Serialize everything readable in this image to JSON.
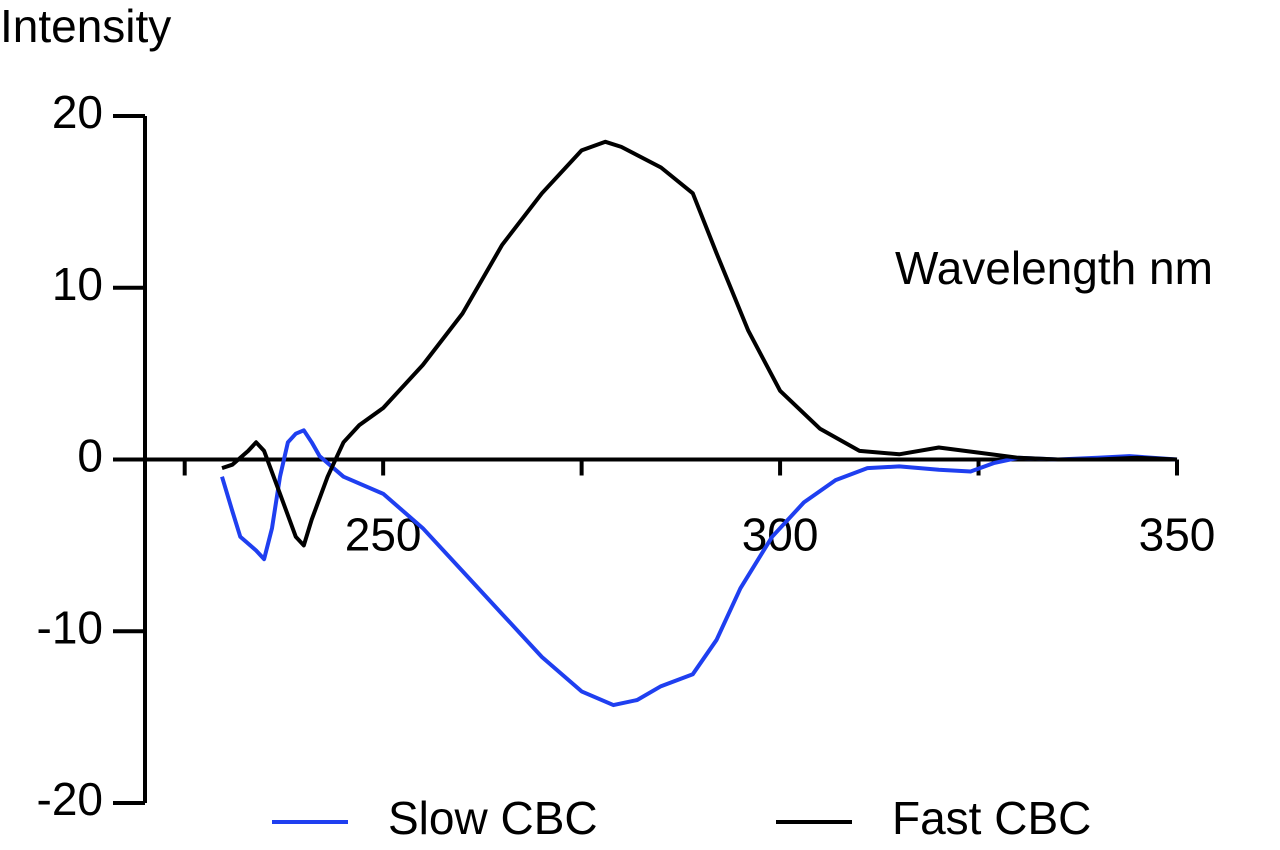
{
  "chart_data": {
    "type": "line",
    "y_label": "Intensity",
    "x_label": "Wavelength nm",
    "xlim": [
      220,
      350
    ],
    "xticks": [
      250,
      300,
      350
    ],
    "xminorticks": [
      225,
      275,
      325
    ],
    "ylim": [
      -20,
      20
    ],
    "yticks": [
      -20,
      -10,
      0,
      10,
      20
    ],
    "series": [
      {
        "name": "Slow CBC",
        "color": "#1f3ff0",
        "x": [
          229.7,
          231,
          232,
          234,
          235,
          236,
          237,
          238,
          239,
          240,
          241,
          242,
          245,
          250,
          255,
          260,
          265,
          270,
          275,
          279,
          282,
          285,
          289,
          292,
          295,
          299,
          303,
          307,
          311,
          315,
          320,
          324,
          327,
          330,
          335,
          340,
          344,
          350
        ],
        "values": [
          -1,
          -3,
          -4.5,
          -5.3,
          -5.8,
          -4,
          -1,
          1,
          1.5,
          1.7,
          1,
          0.2,
          -1,
          -2,
          -4,
          -6.5,
          -9,
          -11.5,
          -13.5,
          -14.3,
          -14,
          -13.2,
          -12.5,
          -10.5,
          -7.5,
          -4.5,
          -2.5,
          -1.2,
          -0.5,
          -0.4,
          -0.6,
          -0.7,
          -0.2,
          0.1,
          0,
          0.1,
          0.2,
          0
        ]
      },
      {
        "name": "Fast CBC",
        "color": "#000000",
        "x": [
          229.7,
          231,
          233,
          234,
          235,
          237,
          239,
          240,
          241,
          243,
          245,
          247,
          250,
          255,
          260,
          265,
          270,
          275,
          278,
          280,
          285,
          289,
          292,
          296,
          300,
          305,
          310,
          315,
          320,
          325,
          330,
          335,
          340,
          345,
          350
        ],
        "values": [
          -0.5,
          -0.3,
          0.5,
          1,
          0.5,
          -2,
          -4.5,
          -5,
          -3.5,
          -1,
          1,
          2,
          3,
          5.5,
          8.5,
          12.5,
          15.5,
          18,
          18.5,
          18.2,
          17,
          15.5,
          12,
          7.5,
          4,
          1.8,
          0.5,
          0.3,
          0.7,
          0.4,
          0.1,
          0,
          0,
          0.1,
          0
        ]
      }
    ]
  }
}
